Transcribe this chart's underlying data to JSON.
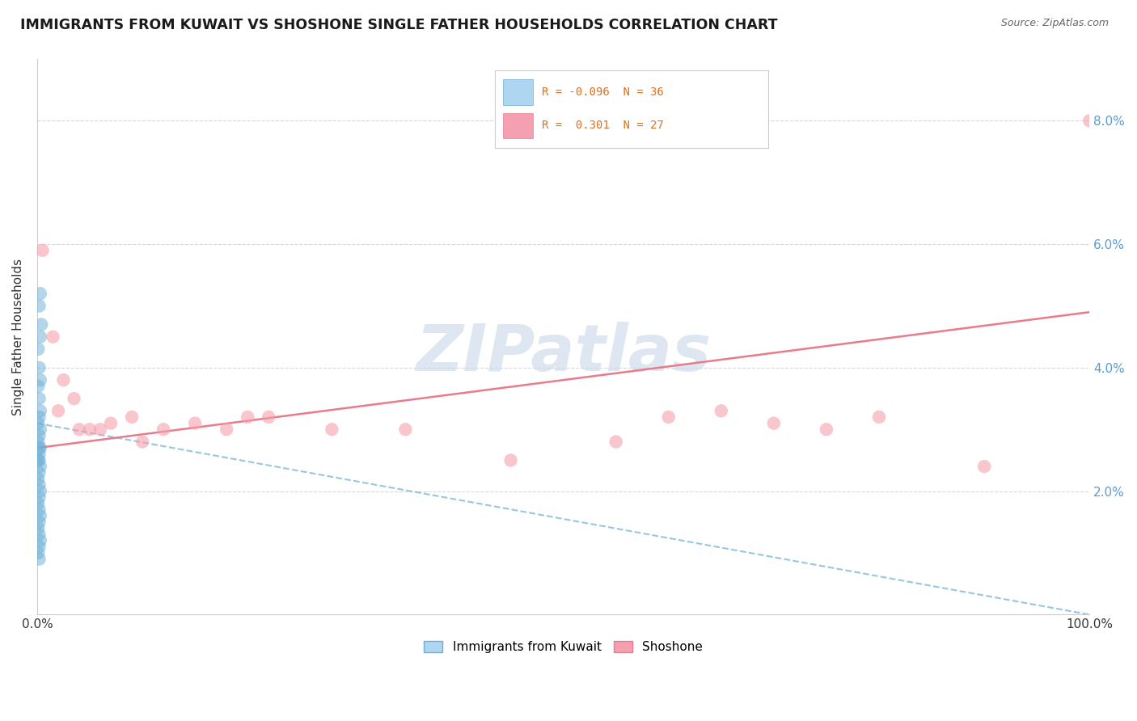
{
  "title": "IMMIGRANTS FROM KUWAIT VS SHOSHONE SINGLE FATHER HOUSEHOLDS CORRELATION CHART",
  "source": "Source: ZipAtlas.com",
  "ylabel": "Single Father Households",
  "watermark": "ZIPatlas",
  "watermark_color": "#c8d8e8",
  "xlim": [
    0.0,
    100.0
  ],
  "ylim": [
    0.0,
    9.0
  ],
  "blue_color": "#6baed6",
  "pink_color": "#f4a0aa",
  "blue_line_color": "#6baed6",
  "pink_line_color": "#e87b8c",
  "grid_color": "#d8d8d8",
  "background_color": "#ffffff",
  "blue_scatter_x": [
    0.3,
    0.2,
    0.4,
    0.3,
    0.1,
    0.2,
    0.3,
    0.1,
    0.2,
    0.3,
    0.2,
    0.1,
    0.3,
    0.2,
    0.1,
    0.2,
    0.3,
    0.2,
    0.1,
    0.2,
    0.3,
    0.2,
    0.1,
    0.2,
    0.3,
    0.2,
    0.1,
    0.2,
    0.3,
    0.2,
    0.1,
    0.2,
    0.3,
    0.2,
    0.1,
    0.2
  ],
  "blue_scatter_y": [
    5.2,
    5.0,
    4.7,
    4.5,
    4.3,
    4.0,
    3.8,
    3.7,
    3.5,
    3.3,
    3.2,
    3.1,
    3.0,
    2.9,
    2.8,
    2.7,
    2.7,
    2.6,
    2.5,
    2.5,
    2.4,
    2.3,
    2.2,
    2.1,
    2.0,
    1.9,
    1.8,
    1.7,
    1.6,
    1.5,
    1.4,
    1.3,
    1.2,
    1.1,
    1.0,
    0.9
  ],
  "pink_scatter_x": [
    0.5,
    1.5,
    2.5,
    3.5,
    5.0,
    7.0,
    9.0,
    12.0,
    15.0,
    18.0,
    22.0,
    28.0,
    35.0,
    45.0,
    55.0,
    65.0,
    75.0,
    80.0,
    90.0,
    100.0,
    2.0,
    4.0,
    6.0,
    10.0,
    20.0,
    70.0,
    60.0
  ],
  "pink_scatter_y": [
    5.9,
    4.5,
    3.8,
    3.5,
    3.0,
    3.1,
    3.2,
    3.0,
    3.1,
    3.0,
    3.2,
    3.0,
    3.0,
    2.5,
    2.8,
    3.3,
    3.0,
    3.2,
    2.4,
    8.0,
    3.3,
    3.0,
    3.0,
    2.8,
    3.2,
    3.1,
    3.2
  ],
  "blue_line_x0": 0.0,
  "blue_line_x1": 100.0,
  "blue_line_y0": 3.1,
  "blue_line_y1": 0.0,
  "pink_line_x0": 0.0,
  "pink_line_x1": 100.0,
  "pink_line_y0": 2.7,
  "pink_line_y1": 4.9,
  "legend_R_blue": "-0.096",
  "legend_N_blue": "36",
  "legend_R_pink": "0.301",
  "legend_N_pink": "27",
  "legend_bottom_1": "Immigrants from Kuwait",
  "legend_bottom_2": "Shoshone"
}
